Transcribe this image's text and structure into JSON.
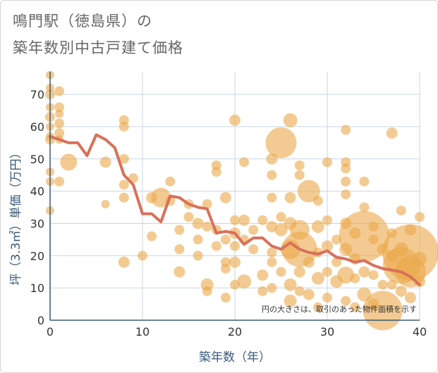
{
  "chart_data": {
    "type": "scatter",
    "title_line1": "鳴門駅（徳島県）の",
    "title_line2": "築年数別中古戸建て価格",
    "xlabel": "築年数（年）",
    "ylabel": "坪（3.3㎡）単価（万円）",
    "xlim": [
      0,
      40
    ],
    "ylim": [
      0,
      77
    ],
    "xticks": [
      0,
      10,
      20,
      30,
      40
    ],
    "yticks": [
      0,
      10,
      20,
      30,
      40,
      50,
      60,
      70
    ],
    "note": "円の大きさは、取引のあった物件面積を示す",
    "colors": {
      "bubble": "#eba849",
      "line": "#d9705a",
      "grid": "#c9d6e3",
      "axis": "#3a5a7a"
    },
    "points": [
      {
        "x": 0,
        "y": 76,
        "s": 6
      },
      {
        "x": 0,
        "y": 72,
        "s": 6
      },
      {
        "x": 0,
        "y": 70,
        "s": 7
      },
      {
        "x": 0,
        "y": 66,
        "s": 6
      },
      {
        "x": 0,
        "y": 63,
        "s": 7
      },
      {
        "x": 0,
        "y": 60,
        "s": 6
      },
      {
        "x": 0,
        "y": 57,
        "s": 6
      },
      {
        "x": 0,
        "y": 56,
        "s": 7
      },
      {
        "x": 0,
        "y": 46,
        "s": 6
      },
      {
        "x": 0,
        "y": 43,
        "s": 6
      },
      {
        "x": 0,
        "y": 34,
        "s": 6
      },
      {
        "x": 1,
        "y": 71,
        "s": 7
      },
      {
        "x": 1,
        "y": 66,
        "s": 7
      },
      {
        "x": 1,
        "y": 64,
        "s": 6
      },
      {
        "x": 1,
        "y": 61,
        "s": 7
      },
      {
        "x": 1,
        "y": 58,
        "s": 7
      },
      {
        "x": 1,
        "y": 56,
        "s": 6
      },
      {
        "x": 1,
        "y": 43,
        "s": 7
      },
      {
        "x": 2,
        "y": 49,
        "s": 12
      },
      {
        "x": 6,
        "y": 49,
        "s": 8
      },
      {
        "x": 6,
        "y": 36,
        "s": 6
      },
      {
        "x": 8,
        "y": 62,
        "s": 7
      },
      {
        "x": 8,
        "y": 60,
        "s": 7
      },
      {
        "x": 8,
        "y": 50,
        "s": 7
      },
      {
        "x": 8,
        "y": 42,
        "s": 7
      },
      {
        "x": 8,
        "y": 38,
        "s": 7
      },
      {
        "x": 8,
        "y": 18,
        "s": 8
      },
      {
        "x": 9,
        "y": 44,
        "s": 7
      },
      {
        "x": 10,
        "y": 20,
        "s": 7
      },
      {
        "x": 11,
        "y": 38,
        "s": 8
      },
      {
        "x": 11,
        "y": 26,
        "s": 7
      },
      {
        "x": 12,
        "y": 38,
        "s": 14
      },
      {
        "x": 13,
        "y": 43,
        "s": 7
      },
      {
        "x": 13,
        "y": 37,
        "s": 7
      },
      {
        "x": 14,
        "y": 28,
        "s": 7
      },
      {
        "x": 14,
        "y": 22,
        "s": 7
      },
      {
        "x": 14,
        "y": 15,
        "s": 8
      },
      {
        "x": 15,
        "y": 36,
        "s": 7
      },
      {
        "x": 15,
        "y": 32,
        "s": 7
      },
      {
        "x": 16,
        "y": 30,
        "s": 8
      },
      {
        "x": 16,
        "y": 25,
        "s": 7
      },
      {
        "x": 16,
        "y": 20,
        "s": 7
      },
      {
        "x": 17,
        "y": 36,
        "s": 7
      },
      {
        "x": 17,
        "y": 29,
        "s": 7
      },
      {
        "x": 17,
        "y": 11,
        "s": 9
      },
      {
        "x": 17,
        "y": 9,
        "s": 7
      },
      {
        "x": 18,
        "y": 48,
        "s": 7
      },
      {
        "x": 18,
        "y": 46,
        "s": 7
      },
      {
        "x": 18,
        "y": 28,
        "s": 7
      },
      {
        "x": 18,
        "y": 23,
        "s": 7
      },
      {
        "x": 19,
        "y": 38,
        "s": 8
      },
      {
        "x": 19,
        "y": 25,
        "s": 7
      },
      {
        "x": 19,
        "y": 18,
        "s": 7
      },
      {
        "x": 19,
        "y": 16,
        "s": 7
      },
      {
        "x": 19,
        "y": 7,
        "s": 7
      },
      {
        "x": 20,
        "y": 62,
        "s": 8
      },
      {
        "x": 20,
        "y": 31,
        "s": 7
      },
      {
        "x": 20,
        "y": 27,
        "s": 8
      },
      {
        "x": 20,
        "y": 23,
        "s": 7
      },
      {
        "x": 20,
        "y": 18,
        "s": 8
      },
      {
        "x": 20,
        "y": 11,
        "s": 7
      },
      {
        "x": 21,
        "y": 49,
        "s": 7
      },
      {
        "x": 21,
        "y": 31,
        "s": 8
      },
      {
        "x": 21,
        "y": 25,
        "s": 7
      },
      {
        "x": 21,
        "y": 12,
        "s": 10
      },
      {
        "x": 22,
        "y": 28,
        "s": 7
      },
      {
        "x": 22,
        "y": 22,
        "s": 7
      },
      {
        "x": 23,
        "y": 31,
        "s": 7
      },
      {
        "x": 23,
        "y": 14,
        "s": 8
      },
      {
        "x": 23,
        "y": 9,
        "s": 7
      },
      {
        "x": 24,
        "y": 50,
        "s": 8
      },
      {
        "x": 24,
        "y": 45,
        "s": 7
      },
      {
        "x": 24,
        "y": 38,
        "s": 7
      },
      {
        "x": 24,
        "y": 29,
        "s": 8
      },
      {
        "x": 24,
        "y": 21,
        "s": 7
      },
      {
        "x": 24,
        "y": 18,
        "s": 7
      },
      {
        "x": 24,
        "y": 10,
        "s": 7
      },
      {
        "x": 25,
        "y": 55,
        "s": 22
      },
      {
        "x": 25,
        "y": 32,
        "s": 7
      },
      {
        "x": 25,
        "y": 28,
        "s": 9
      },
      {
        "x": 25,
        "y": 15,
        "s": 7
      },
      {
        "x": 26,
        "y": 62,
        "s": 10
      },
      {
        "x": 26,
        "y": 38,
        "s": 8
      },
      {
        "x": 26,
        "y": 30,
        "s": 9
      },
      {
        "x": 26,
        "y": 22,
        "s": 14
      },
      {
        "x": 26,
        "y": 11,
        "s": 9
      },
      {
        "x": 26,
        "y": 6,
        "s": 9
      },
      {
        "x": 27,
        "y": 48,
        "s": 7
      },
      {
        "x": 27,
        "y": 45,
        "s": 7
      },
      {
        "x": 27,
        "y": 28,
        "s": 14
      },
      {
        "x": 27,
        "y": 22,
        "s": 25
      },
      {
        "x": 27,
        "y": 15,
        "s": 8
      },
      {
        "x": 27,
        "y": 9,
        "s": 7
      },
      {
        "x": 28,
        "y": 40,
        "s": 16
      },
      {
        "x": 28,
        "y": 18,
        "s": 8
      },
      {
        "x": 28,
        "y": 8,
        "s": 8
      },
      {
        "x": 29,
        "y": 37,
        "s": 7
      },
      {
        "x": 29,
        "y": 29,
        "s": 9
      },
      {
        "x": 29,
        "y": 21,
        "s": 7
      },
      {
        "x": 29,
        "y": 13,
        "s": 9
      },
      {
        "x": 29,
        "y": 4,
        "s": 7
      },
      {
        "x": 30,
        "y": 49,
        "s": 7
      },
      {
        "x": 30,
        "y": 31,
        "s": 7
      },
      {
        "x": 30,
        "y": 23,
        "s": 8
      },
      {
        "x": 30,
        "y": 15,
        "s": 7
      },
      {
        "x": 30,
        "y": 7,
        "s": 7
      },
      {
        "x": 31,
        "y": 25,
        "s": 7
      },
      {
        "x": 31,
        "y": 18,
        "s": 7
      },
      {
        "x": 31,
        "y": 12,
        "s": 9
      },
      {
        "x": 32,
        "y": 59,
        "s": 7
      },
      {
        "x": 32,
        "y": 49,
        "s": 7
      },
      {
        "x": 32,
        "y": 47,
        "s": 7
      },
      {
        "x": 32,
        "y": 43,
        "s": 7
      },
      {
        "x": 32,
        "y": 39,
        "s": 7
      },
      {
        "x": 32,
        "y": 30,
        "s": 8
      },
      {
        "x": 32,
        "y": 22,
        "s": 9
      },
      {
        "x": 32,
        "y": 14,
        "s": 12
      },
      {
        "x": 32,
        "y": 6,
        "s": 7
      },
      {
        "x": 33,
        "y": 27,
        "s": 8
      },
      {
        "x": 33,
        "y": 19,
        "s": 8
      },
      {
        "x": 33,
        "y": 13,
        "s": 7
      },
      {
        "x": 33,
        "y": 4,
        "s": 7
      },
      {
        "x": 34,
        "y": 43,
        "s": 7
      },
      {
        "x": 34,
        "y": 35,
        "s": 7
      },
      {
        "x": 34,
        "y": 26,
        "s": 36
      },
      {
        "x": 34,
        "y": 15,
        "s": 8
      },
      {
        "x": 34,
        "y": 8,
        "s": 10
      },
      {
        "x": 35,
        "y": 29,
        "s": 7
      },
      {
        "x": 35,
        "y": 25,
        "s": 7
      },
      {
        "x": 35,
        "y": 14,
        "s": 7
      },
      {
        "x": 35,
        "y": 5,
        "s": 8
      },
      {
        "x": 36,
        "y": 22,
        "s": 8
      },
      {
        "x": 36,
        "y": 11,
        "s": 7
      },
      {
        "x": 36,
        "y": 3,
        "s": 28
      },
      {
        "x": 37,
        "y": 58,
        "s": 8
      },
      {
        "x": 37,
        "y": 27,
        "s": 7
      },
      {
        "x": 37,
        "y": 20,
        "s": 8
      },
      {
        "x": 37,
        "y": 11,
        "s": 7
      },
      {
        "x": 38,
        "y": 34,
        "s": 7
      },
      {
        "x": 38,
        "y": 22,
        "s": 10
      },
      {
        "x": 38,
        "y": 17,
        "s": 26
      },
      {
        "x": 38,
        "y": 9,
        "s": 8
      },
      {
        "x": 39,
        "y": 28,
        "s": 8
      },
      {
        "x": 39,
        "y": 21,
        "s": 40
      },
      {
        "x": 39,
        "y": 15,
        "s": 22
      },
      {
        "x": 39,
        "y": 7,
        "s": 8
      },
      {
        "x": 40,
        "y": 32,
        "s": 7
      },
      {
        "x": 40,
        "y": 19,
        "s": 10
      },
      {
        "x": 40,
        "y": 12,
        "s": 8
      }
    ],
    "trend": {
      "x": [
        0,
        1,
        2,
        3,
        4,
        5,
        6,
        7,
        8,
        9,
        10,
        11,
        12,
        13,
        14,
        15,
        16,
        17,
        18,
        19,
        20,
        21,
        22,
        23,
        24,
        25,
        26,
        27,
        28,
        29,
        30,
        31,
        32,
        33,
        34,
        35,
        36,
        37,
        38,
        39,
        40
      ],
      "y": [
        57,
        56,
        55,
        55,
        51,
        57.5,
        56,
        53.5,
        45,
        42,
        33,
        33,
        30.5,
        38.5,
        38,
        36,
        35,
        34.5,
        27,
        27.5,
        27,
        23.5,
        25.5,
        25.5,
        23,
        22,
        24,
        22,
        21,
        20.5,
        21.5,
        19.5,
        19,
        18,
        18.5,
        17,
        16,
        15.5,
        15,
        13.5,
        11
      ]
    }
  }
}
